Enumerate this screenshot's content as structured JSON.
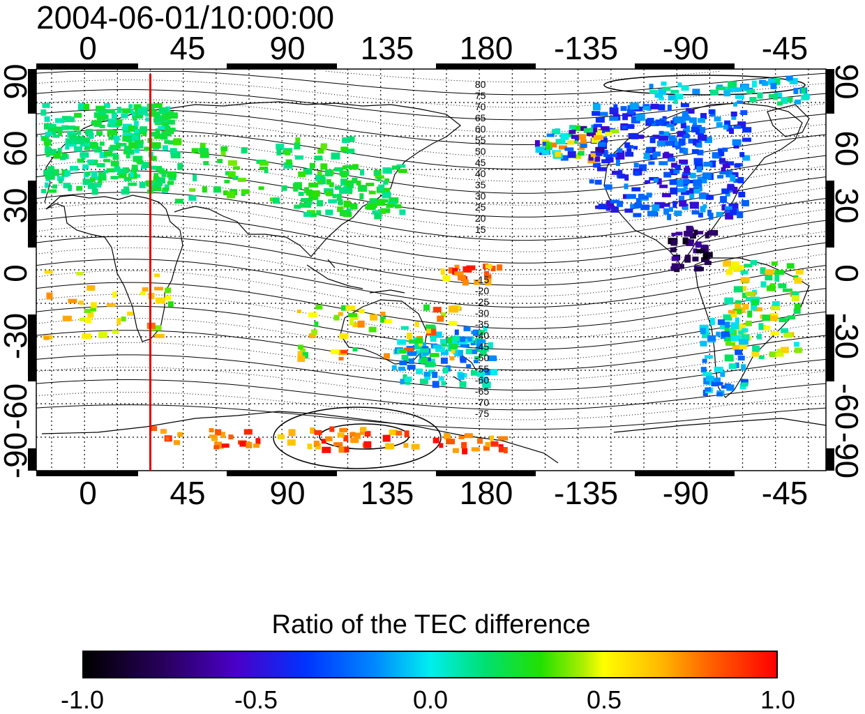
{
  "title": "2004-06-01/10:00:00",
  "axes": {
    "x_ticks_top": [
      "0",
      "45",
      "90",
      "135",
      "180",
      "-135",
      "-90",
      "-45"
    ],
    "x_ticks_bottom": [
      "0",
      "45",
      "90",
      "135",
      "180",
      "-135",
      "-90",
      "-45"
    ],
    "y_ticks_left": [
      "90",
      "60",
      "30",
      "0",
      "-30",
      "-60",
      "-90"
    ],
    "y_ticks_right": [
      "90",
      "60",
      "30",
      "0",
      "-30",
      "-60",
      "-90"
    ],
    "lon_range": [
      -22,
      338
    ],
    "lat_range": [
      -90,
      90
    ],
    "grid": "dotted, every 15 degrees"
  },
  "marker_line": {
    "longitude": 30,
    "color": "#e00000"
  },
  "magnetic_latitude_labels": {
    "north": [
      "80",
      "75",
      "70",
      "65",
      "60",
      "55",
      "50",
      "45",
      "40",
      "35",
      "30",
      "25",
      "20",
      "15"
    ],
    "south": [
      "-15",
      "-20",
      "-25",
      "-30",
      "-35",
      "-40",
      "-45",
      "-50",
      "-55",
      "-60",
      "-65",
      "-70",
      "-75"
    ]
  },
  "colorbar": {
    "title": "Ratio of the TEC difference",
    "ticks": [
      "-1.0",
      "-0.5",
      "0.0",
      "0.5",
      "1.0"
    ],
    "range": [
      -1.0,
      1.0
    ]
  }
}
